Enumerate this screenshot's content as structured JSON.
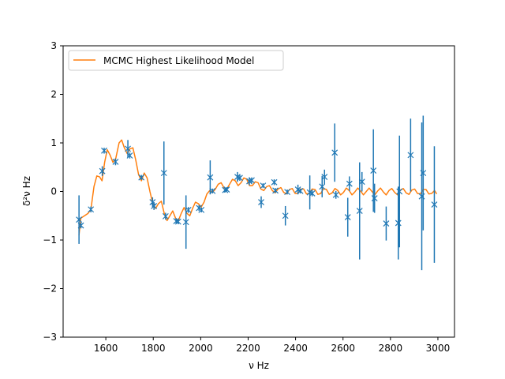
{
  "chart_data": {
    "type": "scatter",
    "xlabel": "ν Hz",
    "ylabel": "δ²ν Hz",
    "xlim": [
      1420,
      3070
    ],
    "ylim": [
      -3,
      3
    ],
    "xticks": [
      1600,
      1800,
      2000,
      2200,
      2400,
      2600,
      2800,
      3000
    ],
    "yticks": [
      -3,
      -2,
      -1,
      0,
      1,
      2,
      3
    ],
    "grid": false,
    "legend": {
      "placement": "top-left",
      "entries": [
        "MCMC Highest Likelihood Model"
      ]
    },
    "colors": {
      "observations": "#1f77b4",
      "model": "#ff7f0e"
    },
    "series": [
      {
        "kind": "errorbar-points",
        "marker": "x",
        "points": [
          {
            "x": 1487,
            "y": -0.58,
            "err": 0.5
          },
          {
            "x": 1495,
            "y": -0.7,
            "err": 0.06
          },
          {
            "x": 1537,
            "y": -0.37,
            "err": 0.06
          },
          {
            "x": 1585,
            "y": 0.42,
            "err": 0.1
          },
          {
            "x": 1593,
            "y": 0.84,
            "err": 0.06
          },
          {
            "x": 1641,
            "y": 0.61,
            "err": 0.07
          },
          {
            "x": 1693,
            "y": 0.88,
            "err": 0.18
          },
          {
            "x": 1701,
            "y": 0.74,
            "err": 0.06
          },
          {
            "x": 1750,
            "y": 0.29,
            "err": 0.05
          },
          {
            "x": 1797,
            "y": -0.22,
            "err": 0.1
          },
          {
            "x": 1803,
            "y": -0.3,
            "err": 0.08
          },
          {
            "x": 1845,
            "y": 0.38,
            "err": 0.65
          },
          {
            "x": 1852,
            "y": -0.51,
            "err": 0.07
          },
          {
            "x": 1897,
            "y": -0.61,
            "err": 0.06
          },
          {
            "x": 1905,
            "y": -0.62,
            "err": 0.05
          },
          {
            "x": 1938,
            "y": -0.63,
            "err": 0.55
          },
          {
            "x": 1948,
            "y": -0.38,
            "err": 0.06
          },
          {
            "x": 1993,
            "y": -0.34,
            "err": 0.06
          },
          {
            "x": 2003,
            "y": -0.38,
            "err": 0.05
          },
          {
            "x": 2040,
            "y": 0.29,
            "err": 0.35
          },
          {
            "x": 2050,
            "y": 0.01,
            "err": 0.05
          },
          {
            "x": 2103,
            "y": 0.03,
            "err": 0.05
          },
          {
            "x": 2110,
            "y": 0.04,
            "err": 0.05
          },
          {
            "x": 2155,
            "y": 0.3,
            "err": 0.1
          },
          {
            "x": 2165,
            "y": 0.28,
            "err": 0.06
          },
          {
            "x": 2205,
            "y": 0.21,
            "err": 0.08
          },
          {
            "x": 2215,
            "y": 0.23,
            "err": 0.06
          },
          {
            "x": 2255,
            "y": -0.22,
            "err": 0.12
          },
          {
            "x": 2263,
            "y": 0.12,
            "err": 0.05
          },
          {
            "x": 2310,
            "y": 0.19,
            "err": 0.06
          },
          {
            "x": 2315,
            "y": 0.02,
            "err": 0.05
          },
          {
            "x": 2357,
            "y": -0.5,
            "err": 0.2
          },
          {
            "x": 2365,
            "y": -0.01,
            "err": 0.05
          },
          {
            "x": 2410,
            "y": 0.04,
            "err": 0.1
          },
          {
            "x": 2420,
            "y": 0.01,
            "err": 0.05
          },
          {
            "x": 2460,
            "y": -0.02,
            "err": 0.35
          },
          {
            "x": 2470,
            "y": -0.04,
            "err": 0.06
          },
          {
            "x": 2512,
            "y": 0.1,
            "err": 0.22
          },
          {
            "x": 2522,
            "y": 0.3,
            "err": 0.15
          },
          {
            "x": 2565,
            "y": 0.8,
            "err": 0.6
          },
          {
            "x": 2570,
            "y": -0.07,
            "err": 0.08
          },
          {
            "x": 2620,
            "y": -0.53,
            "err": 0.4
          },
          {
            "x": 2627,
            "y": 0.16,
            "err": 0.15
          },
          {
            "x": 2670,
            "y": -0.4,
            "err": 1.0
          },
          {
            "x": 2680,
            "y": 0.2,
            "err": 0.2
          },
          {
            "x": 2728,
            "y": 0.43,
            "err": 0.85
          },
          {
            "x": 2733,
            "y": -0.14,
            "err": 0.3
          },
          {
            "x": 2782,
            "y": -0.66,
            "err": 0.35
          },
          {
            "x": 2833,
            "y": -0.65,
            "err": 0.75
          },
          {
            "x": 2838,
            "y": 0.0,
            "err": 1.15
          },
          {
            "x": 2885,
            "y": 0.75,
            "err": 0.75
          },
          {
            "x": 2932,
            "y": -0.1,
            "err": 1.52
          },
          {
            "x": 2938,
            "y": 0.38,
            "err": 1.18
          },
          {
            "x": 2985,
            "y": -0.27,
            "err": 1.2
          }
        ]
      },
      {
        "name": "MCMC Highest Likelihood Model",
        "kind": "line",
        "points": [
          [
            1487,
            -0.9
          ],
          [
            1495,
            -0.55
          ],
          [
            1510,
            -0.5
          ],
          [
            1525,
            -0.45
          ],
          [
            1537,
            -0.37
          ],
          [
            1550,
            0.1
          ],
          [
            1562,
            0.32
          ],
          [
            1574,
            0.3
          ],
          [
            1584,
            0.22
          ],
          [
            1595,
            0.6
          ],
          [
            1606,
            0.86
          ],
          [
            1618,
            0.75
          ],
          [
            1630,
            0.6
          ],
          [
            1642,
            0.68
          ],
          [
            1656,
            1.0
          ],
          [
            1667,
            1.06
          ],
          [
            1678,
            0.9
          ],
          [
            1690,
            0.78
          ],
          [
            1702,
            0.88
          ],
          [
            1714,
            0.9
          ],
          [
            1726,
            0.65
          ],
          [
            1738,
            0.35
          ],
          [
            1750,
            0.22
          ],
          [
            1762,
            0.38
          ],
          [
            1774,
            0.28
          ],
          [
            1786,
            0.0
          ],
          [
            1798,
            -0.25
          ],
          [
            1810,
            -0.35
          ],
          [
            1822,
            -0.25
          ],
          [
            1834,
            -0.2
          ],
          [
            1846,
            -0.45
          ],
          [
            1858,
            -0.6
          ],
          [
            1870,
            -0.5
          ],
          [
            1882,
            -0.4
          ],
          [
            1894,
            -0.55
          ],
          [
            1906,
            -0.6
          ],
          [
            1918,
            -0.45
          ],
          [
            1930,
            -0.33
          ],
          [
            1942,
            -0.45
          ],
          [
            1954,
            -0.5
          ],
          [
            1966,
            -0.35
          ],
          [
            1978,
            -0.22
          ],
          [
            1990,
            -0.25
          ],
          [
            2002,
            -0.32
          ],
          [
            2014,
            -0.22
          ],
          [
            2026,
            -0.05
          ],
          [
            2038,
            0.02
          ],
          [
            2050,
            -0.02
          ],
          [
            2062,
            0.05
          ],
          [
            2074,
            0.15
          ],
          [
            2086,
            0.18
          ],
          [
            2098,
            0.08
          ],
          [
            2110,
            0.05
          ],
          [
            2122,
            0.15
          ],
          [
            2134,
            0.25
          ],
          [
            2146,
            0.22
          ],
          [
            2158,
            0.12
          ],
          [
            2170,
            0.18
          ],
          [
            2182,
            0.28
          ],
          [
            2194,
            0.25
          ],
          [
            2206,
            0.12
          ],
          [
            2218,
            0.12
          ],
          [
            2230,
            0.2
          ],
          [
            2242,
            0.18
          ],
          [
            2254,
            0.05
          ],
          [
            2266,
            0.02
          ],
          [
            2278,
            0.1
          ],
          [
            2290,
            0.12
          ],
          [
            2302,
            0.02
          ],
          [
            2314,
            -0.03
          ],
          [
            2326,
            0.05
          ],
          [
            2338,
            0.08
          ],
          [
            2350,
            -0.02
          ],
          [
            2362,
            -0.05
          ],
          [
            2374,
            0.04
          ],
          [
            2386,
            0.06
          ],
          [
            2398,
            -0.04
          ],
          [
            2410,
            -0.04
          ],
          [
            2422,
            0.05
          ],
          [
            2434,
            0.05
          ],
          [
            2446,
            -0.05
          ],
          [
            2458,
            -0.04
          ],
          [
            2470,
            0.05
          ],
          [
            2482,
            0.04
          ],
          [
            2494,
            -0.06
          ],
          [
            2506,
            -0.04
          ],
          [
            2518,
            0.06
          ],
          [
            2530,
            0.04
          ],
          [
            2542,
            -0.06
          ],
          [
            2554,
            -0.03
          ],
          [
            2566,
            0.06
          ],
          [
            2578,
            0.02
          ],
          [
            2590,
            -0.07
          ],
          [
            2602,
            -0.02
          ],
          [
            2614,
            0.07
          ],
          [
            2626,
            0.02
          ],
          [
            2638,
            -0.07
          ],
          [
            2650,
            -0.01
          ],
          [
            2662,
            0.07
          ],
          [
            2674,
            0.01
          ],
          [
            2686,
            -0.07
          ],
          [
            2698,
            0.0
          ],
          [
            2710,
            0.07
          ],
          [
            2722,
            0.0
          ],
          [
            2734,
            -0.07
          ],
          [
            2746,
            0.01
          ],
          [
            2758,
            0.07
          ],
          [
            2770,
            -0.01
          ],
          [
            2782,
            -0.07
          ],
          [
            2794,
            0.02
          ],
          [
            2806,
            0.06
          ],
          [
            2818,
            -0.02
          ],
          [
            2830,
            -0.07
          ],
          [
            2842,
            0.03
          ],
          [
            2854,
            0.06
          ],
          [
            2866,
            -0.03
          ],
          [
            2878,
            -0.06
          ],
          [
            2890,
            0.03
          ],
          [
            2902,
            0.05
          ],
          [
            2914,
            -0.04
          ],
          [
            2926,
            -0.05
          ],
          [
            2938,
            0.04
          ],
          [
            2950,
            0.04
          ],
          [
            2962,
            -0.05
          ],
          [
            2974,
            -0.04
          ],
          [
            2986,
            0.02
          ],
          [
            2995,
            -0.05
          ]
        ]
      }
    ]
  }
}
